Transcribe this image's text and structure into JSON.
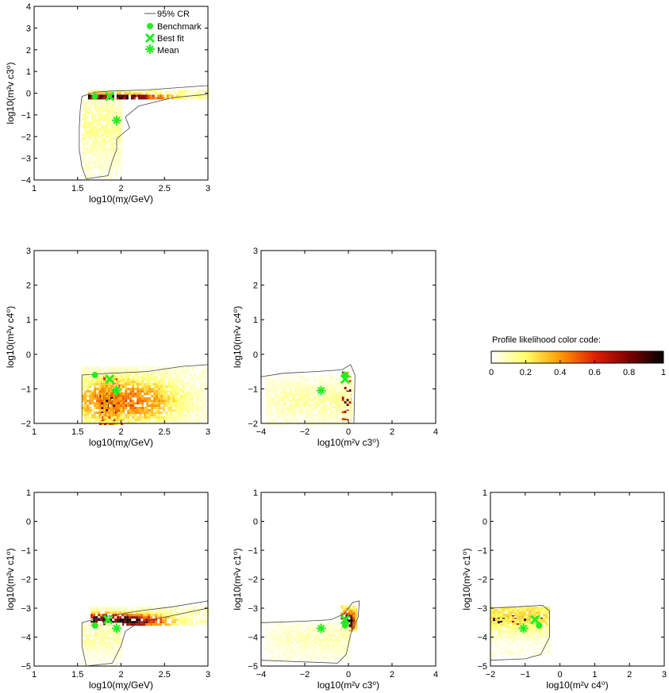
{
  "figure": {
    "colorbar": {
      "title": "Profile likelihood color code:",
      "ticks": [
        "0",
        "0.2",
        "0.4",
        "0.6",
        "0.8",
        "1"
      ],
      "range": [
        0,
        1
      ]
    },
    "legend": {
      "placement": "top-right of first panel",
      "entries": [
        {
          "label": "95% CR",
          "marker": "line",
          "color": "#555555"
        },
        {
          "label": "Benchmark",
          "marker": "dot",
          "color": "#22ee22"
        },
        {
          "label": "Best fit",
          "marker": "x",
          "color": "#22ee22"
        },
        {
          "label": "Mean",
          "marker": "asterisk",
          "color": "#22ee22"
        }
      ]
    }
  },
  "chart_data": [
    {
      "type": "heatmap",
      "xlabel": "log10(mχ/GeV)",
      "ylabel": "log10(m²v c3⁰)",
      "xlim": [
        1,
        3
      ],
      "ylim": [
        -4,
        4
      ],
      "xticks": [
        "1",
        "1.5",
        "2",
        "2.5",
        "3"
      ],
      "yticks": [
        "-4",
        "-3",
        "-2",
        "-1",
        "0",
        "1",
        "2",
        "3",
        "4"
      ],
      "benchmark": [
        1.7,
        -0.15
      ],
      "best_fit": [
        1.87,
        -0.15
      ],
      "mean": [
        1.95,
        -1.25
      ],
      "contour_95": [
        [
          1.55,
          -0.15
        ],
        [
          1.7,
          0.05
        ],
        [
          1.9,
          0.1
        ],
        [
          2.3,
          0.15
        ],
        [
          3.0,
          0.35
        ],
        [
          3.0,
          -0.05
        ],
        [
          2.6,
          -0.2
        ],
        [
          2.2,
          -0.6
        ],
        [
          2.05,
          -1.1
        ],
        [
          2.1,
          -1.6
        ],
        [
          1.95,
          -2.1
        ],
        [
          1.95,
          -2.6
        ],
        [
          1.9,
          -3.1
        ],
        [
          1.85,
          -3.8
        ],
        [
          1.6,
          -3.95
        ],
        [
          1.55,
          -3.4
        ],
        [
          1.52,
          -2.6
        ],
        [
          1.52,
          -1.6
        ],
        [
          1.53,
          -0.8
        ]
      ],
      "ridges": [
        {
          "x0": 1.62,
          "x1": 3.0,
          "y0": -0.2,
          "y1": 0.15,
          "peak": 1.0,
          "peak_x": [
            1.7,
            1.95
          ],
          "peak_y": -0.12,
          "min": 0.1
        },
        {
          "x0": 1.55,
          "x1": 2.0,
          "y0": -3.9,
          "y1": -0.3,
          "peak": 0.15,
          "peak_x": [
            1.6,
            1.9
          ],
          "peak_y": -1.5,
          "min": 0.05
        }
      ]
    },
    {
      "type": "heatmap",
      "xlabel": "log10(mχ/GeV)",
      "ylabel": "log10(m²v c4⁰)",
      "xlim": [
        1,
        3
      ],
      "ylim": [
        -2,
        3
      ],
      "xticks": [
        "1",
        "1.5",
        "2",
        "2.5",
        "3"
      ],
      "yticks": [
        "-2",
        "-1",
        "0",
        "1",
        "2",
        "3"
      ],
      "benchmark": [
        1.7,
        -0.6
      ],
      "best_fit": [
        1.87,
        -0.72
      ],
      "mean": [
        1.95,
        -1.05
      ],
      "contour_95": [
        [
          1.55,
          -0.6
        ],
        [
          1.85,
          -0.55
        ],
        [
          2.3,
          -0.5
        ],
        [
          2.7,
          -0.35
        ],
        [
          3.0,
          -0.3
        ],
        [
          3.0,
          -2.0
        ],
        [
          1.55,
          -2.0
        ]
      ],
      "ridges": [
        {
          "x0": 1.75,
          "x1": 2.0,
          "y0": -2.0,
          "y1": -0.6,
          "peak": 1.0,
          "peak_x": [
            1.8,
            1.88
          ],
          "peak_y": -1.3,
          "min": 0.35
        },
        {
          "x0": 1.55,
          "x1": 3.0,
          "y0": -2.0,
          "y1": -0.35,
          "peak": 0.45,
          "peak_x": [
            1.9,
            2.1
          ],
          "peak_y": -1.3,
          "min": 0.05
        }
      ]
    },
    {
      "type": "heatmap",
      "xlabel": "log10(m²v c3⁰)",
      "ylabel": "log10(m²v c4⁰)",
      "xlim": [
        -4,
        4
      ],
      "ylim": [
        -2,
        3
      ],
      "xticks": [
        "-4",
        "-2",
        "0",
        "2",
        "4"
      ],
      "yticks": [
        "-2",
        "-1",
        "0",
        "1",
        "2",
        "3"
      ],
      "benchmark": [
        -0.15,
        -0.6
      ],
      "best_fit": [
        -0.15,
        -0.72
      ],
      "mean": [
        -1.25,
        -1.05
      ],
      "contour_95": [
        [
          -4.0,
          -0.65
        ],
        [
          -3.0,
          -0.55
        ],
        [
          -1.5,
          -0.5
        ],
        [
          -0.3,
          -0.45
        ],
        [
          0.1,
          -0.3
        ],
        [
          0.3,
          -0.6
        ],
        [
          0.25,
          -2.0
        ],
        [
          -4.0,
          -2.0
        ]
      ],
      "ridges": [
        {
          "x0": -0.3,
          "x1": 0.1,
          "y0": -2.0,
          "y1": -0.5,
          "peak": 1.0,
          "peak_x": [
            -0.2,
            -0.05
          ],
          "peak_y": -1.2,
          "min": 0.4
        },
        {
          "x0": -3.8,
          "x1": 0.2,
          "y0": -2.0,
          "y1": -0.6,
          "peak": 0.12,
          "peak_x": [
            -2.5,
            -0.5
          ],
          "peak_y": -1.3,
          "min": 0.04
        }
      ]
    },
    {
      "type": "heatmap",
      "xlabel": "log10(mχ/GeV)",
      "ylabel": "log10(m²v c1⁰)",
      "xlim": [
        1,
        3
      ],
      "ylim": [
        -5,
        1
      ],
      "xticks": [
        "1",
        "1.5",
        "2",
        "2.5",
        "3"
      ],
      "yticks": [
        "-5",
        "-4",
        "-3",
        "-2",
        "-1",
        "0",
        "1"
      ],
      "benchmark": [
        1.7,
        -3.6
      ],
      "best_fit": [
        1.85,
        -3.4
      ],
      "mean": [
        1.95,
        -3.7
      ],
      "contour_95": [
        [
          1.55,
          -3.5
        ],
        [
          1.8,
          -3.3
        ],
        [
          2.2,
          -3.1
        ],
        [
          2.6,
          -2.95
        ],
        [
          3.0,
          -2.75
        ],
        [
          3.0,
          -3.0
        ],
        [
          2.6,
          -3.25
        ],
        [
          2.2,
          -3.5
        ],
        [
          2.05,
          -3.8
        ],
        [
          2.0,
          -4.3
        ],
        [
          1.9,
          -4.9
        ],
        [
          1.6,
          -5.0
        ],
        [
          1.55,
          -4.3
        ]
      ],
      "ridges": [
        {
          "x0": 1.65,
          "x1": 3.0,
          "y0": -3.55,
          "y1": -2.95,
          "peak": 1.0,
          "peak_x": [
            1.75,
            1.95
          ],
          "peak_y": -3.4,
          "min": 0.08
        },
        {
          "x0": 1.55,
          "x1": 2.0,
          "y0": -4.9,
          "y1": -3.5,
          "peak": 0.12,
          "peak_x": [
            1.6,
            1.9
          ],
          "peak_y": -4.0,
          "min": 0.04
        }
      ]
    },
    {
      "type": "heatmap",
      "xlabel": "log10(m²v c3⁰)",
      "ylabel": "log10(m²v c1⁰)",
      "xlim": [
        -4,
        4
      ],
      "ylim": [
        -5,
        1
      ],
      "xticks": [
        "-4",
        "-2",
        "0",
        "2",
        "4"
      ],
      "yticks": [
        "-5",
        "-4",
        "-3",
        "-2",
        "-1",
        "0",
        "1"
      ],
      "benchmark": [
        -0.15,
        -3.6
      ],
      "best_fit": [
        -0.15,
        -3.4
      ],
      "mean": [
        -1.25,
        -3.7
      ],
      "contour_95": [
        [
          -4.0,
          -3.5
        ],
        [
          -2.0,
          -3.45
        ],
        [
          -0.8,
          -3.4
        ],
        [
          -0.2,
          -3.2
        ],
        [
          0.2,
          -2.8
        ],
        [
          0.5,
          -2.75
        ],
        [
          0.45,
          -3.3
        ],
        [
          0.1,
          -3.9
        ],
        [
          -0.1,
          -4.6
        ],
        [
          -0.5,
          -4.9
        ],
        [
          -4.0,
          -4.8
        ]
      ],
      "ridges": [
        {
          "x0": -0.35,
          "x1": 0.35,
          "y0": -3.8,
          "y1": -2.9,
          "peak": 0.95,
          "peak_x": [
            -0.15,
            0.0
          ],
          "peak_y": -3.4,
          "min": 0.15
        },
        {
          "x0": -3.8,
          "x1": 0.1,
          "y0": -4.8,
          "y1": -3.5,
          "peak": 0.1,
          "peak_x": [
            -2.0,
            -0.5
          ],
          "peak_y": -4.0,
          "min": 0.04
        }
      ]
    },
    {
      "type": "heatmap",
      "xlabel": "log10(m²v c4⁰)",
      "ylabel": "log10(m²v c1⁰)",
      "xlim": [
        -2,
        3
      ],
      "ylim": [
        -5,
        1
      ],
      "xticks": [
        "-2",
        "-1",
        "0",
        "1",
        "2",
        "3"
      ],
      "yticks": [
        "-5",
        "-4",
        "-3",
        "-2",
        "-1",
        "0",
        "1"
      ],
      "benchmark": [
        -0.6,
        -3.6
      ],
      "best_fit": [
        -0.72,
        -3.4
      ],
      "mean": [
        -1.05,
        -3.7
      ],
      "contour_95": [
        [
          -2.0,
          -3.0
        ],
        [
          -1.2,
          -2.95
        ],
        [
          -0.5,
          -2.9
        ],
        [
          -0.3,
          -3.1
        ],
        [
          -0.3,
          -4.0
        ],
        [
          -0.55,
          -4.6
        ],
        [
          -1.0,
          -4.75
        ],
        [
          -2.0,
          -4.8
        ]
      ],
      "ridges": [
        {
          "x0": -2.0,
          "x1": -0.5,
          "y0": -3.5,
          "y1": -3.25,
          "peak": 1.0,
          "peak_x": [
            -1.9,
            -0.7
          ],
          "peak_y": -3.38,
          "min": 0.6
        },
        {
          "x0": -2.0,
          "x1": -0.35,
          "y0": -4.6,
          "y1": -2.95,
          "peak": 0.25,
          "peak_x": [
            -1.8,
            -0.6
          ],
          "peak_y": -3.2,
          "min": 0.04
        }
      ]
    }
  ]
}
